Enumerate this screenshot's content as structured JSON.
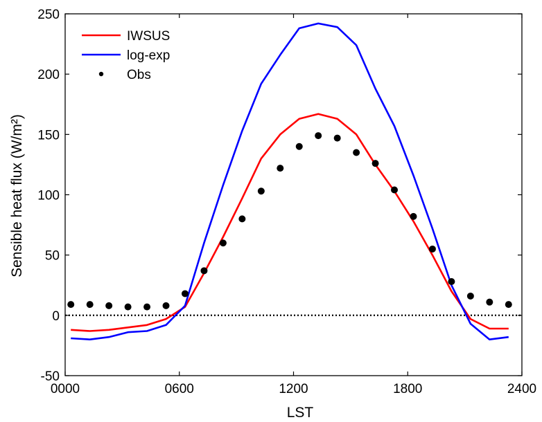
{
  "chart_data": {
    "type": "line",
    "xlabel": "LST",
    "ylabel": "Sensible heat flux (W/m²)",
    "xlim": [
      0,
      2400
    ],
    "ylim": [
      -50,
      250
    ],
    "x_ticks": [
      0,
      600,
      1200,
      1800,
      2400
    ],
    "x_tick_labels": [
      "0000",
      "0600",
      "1200",
      "1800",
      "2400"
    ],
    "y_ticks": [
      -50,
      0,
      50,
      100,
      150,
      200,
      250
    ],
    "y_tick_labels": [
      "-50",
      "0",
      "50",
      "100",
      "150",
      "200",
      "250"
    ],
    "legend_position": "top-left",
    "zero_line": {
      "value": 0,
      "style": "dotted",
      "color": "#000000"
    },
    "series": [
      {
        "name": "IWSUS",
        "kind": "line",
        "color": "#ff0000",
        "x": [
          30,
          130,
          230,
          330,
          430,
          530,
          630,
          730,
          830,
          930,
          1030,
          1130,
          1230,
          1330,
          1430,
          1530,
          1630,
          1730,
          1830,
          1930,
          2030,
          2130,
          2230,
          2330
        ],
        "y": [
          -12,
          -13,
          -12,
          -10,
          -8,
          -3,
          7,
          35,
          65,
          97,
          130,
          150,
          163,
          167,
          163,
          150,
          125,
          103,
          78,
          50,
          20,
          -3,
          -11,
          -11
        ]
      },
      {
        "name": "log-exp",
        "kind": "line",
        "color": "#0000ff",
        "x": [
          30,
          130,
          230,
          330,
          430,
          530,
          630,
          730,
          830,
          930,
          1030,
          1130,
          1230,
          1330,
          1430,
          1530,
          1630,
          1730,
          1830,
          1930,
          2030,
          2130,
          2230,
          2330
        ],
        "y": [
          -19,
          -20,
          -18,
          -14,
          -13,
          -8,
          8,
          60,
          108,
          153,
          192,
          216,
          238,
          242,
          239,
          224,
          188,
          157,
          116,
          72,
          25,
          -7,
          -20,
          -18
        ]
      },
      {
        "name": "Obs",
        "kind": "scatter",
        "color": "#000000",
        "x": [
          30,
          130,
          230,
          330,
          430,
          530,
          630,
          730,
          830,
          930,
          1030,
          1130,
          1230,
          1330,
          1430,
          1530,
          1630,
          1730,
          1830,
          1930,
          2030,
          2130,
          2230,
          2330
        ],
        "y": [
          9,
          9,
          8,
          7,
          7,
          8,
          18,
          37,
          60,
          80,
          103,
          122,
          140,
          149,
          147,
          135,
          126,
          104,
          82,
          55,
          28,
          16,
          11,
          9
        ]
      }
    ]
  }
}
